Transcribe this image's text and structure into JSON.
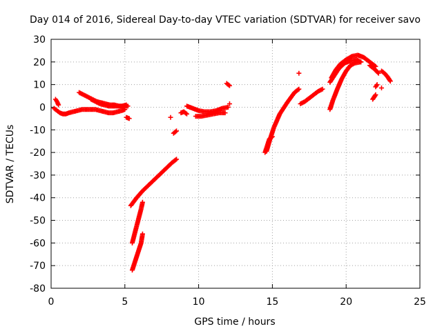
{
  "chart_data": {
    "type": "scatter",
    "title": "Day 014 of 2016, Sidereal Day-to-day VTEC variation (SDTVAR) for receiver savo",
    "xlabel": "GPS time / hours",
    "ylabel": "SDTVAR / TECUs",
    "xlim": [
      0,
      25
    ],
    "ylim": [
      -80,
      30
    ],
    "xticks": [
      0,
      5,
      10,
      15,
      20,
      25
    ],
    "yticks": [
      30,
      20,
      10,
      0,
      -10,
      -20,
      -30,
      -40,
      -50,
      -60,
      -70,
      -80
    ],
    "grid": true,
    "marker": "plus",
    "color": "#ff0000",
    "series": [
      {
        "x": [
          0.2,
          0.4,
          0.6,
          0.8,
          1.0,
          1.2,
          1.5,
          1.8,
          2.1,
          2.4,
          2.7,
          3.0,
          3.3,
          3.6,
          3.9,
          4.2,
          4.5,
          4.8,
          5.0
        ],
        "y": [
          -0.5,
          -1.5,
          -2.5,
          -3.0,
          -3.0,
          -2.5,
          -2.0,
          -1.5,
          -1.0,
          -1.0,
          -1.0,
          -1.0,
          -1.5,
          -2.0,
          -2.5,
          -2.5,
          -2.0,
          -1.5,
          -1.0
        ]
      },
      {
        "x": [
          0.3,
          0.4,
          0.5
        ],
        "y": [
          3.5,
          2.5,
          1.0
        ]
      },
      {
        "x": [
          1.9,
          2.2,
          2.5,
          2.8,
          3.1,
          3.4,
          3.7,
          4.0,
          4.3,
          4.6,
          4.9,
          5.2
        ],
        "y": [
          6.5,
          5.5,
          4.5,
          3.5,
          2.5,
          2.0,
          1.5,
          1.0,
          1.0,
          0.5,
          0.5,
          0.5
        ]
      },
      {
        "x": [
          2.7,
          3.0,
          3.3,
          3.6,
          3.9,
          4.2,
          4.5,
          4.8,
          5.1
        ],
        "y": [
          3.5,
          2.5,
          1.5,
          1.0,
          0.5,
          0.5,
          0.5,
          0.5,
          1.0
        ]
      },
      {
        "x": [
          5.1,
          5.3
        ],
        "y": [
          -4.5,
          -5.0
        ]
      },
      {
        "x": [
          5.4,
          5.8,
          6.2,
          6.6,
          7.0,
          7.4,
          7.8,
          8.2,
          8.5
        ],
        "y": [
          -43.5,
          -40.0,
          -37.0,
          -34.5,
          -32.0,
          -29.5,
          -27.0,
          -24.5,
          -23.0
        ]
      },
      {
        "x": [
          5.5,
          5.7,
          5.9,
          6.1,
          6.2
        ],
        "y": [
          -60.0,
          -55.0,
          -50.0,
          -45.0,
          -42.0
        ]
      },
      {
        "x": [
          5.5,
          5.7,
          5.9,
          6.1,
          6.2
        ],
        "y": [
          -72.0,
          -68.0,
          -64.0,
          -60.0,
          -56.0
        ]
      },
      {
        "x": [
          8.1
        ],
        "y": [
          -4.5
        ]
      },
      {
        "x": [
          8.3,
          8.5
        ],
        "y": [
          -11.5,
          -10.5
        ]
      },
      {
        "x": [
          8.8,
          9.0,
          9.2
        ],
        "y": [
          -2.5,
          -2.0,
          -3.0
        ]
      },
      {
        "x": [
          9.2,
          9.6,
          10.0,
          10.4,
          10.8,
          11.2,
          11.6,
          12.0
        ],
        "y": [
          0.5,
          -0.5,
          -1.5,
          -2.0,
          -2.0,
          -1.5,
          -0.5,
          0.0
        ]
      },
      {
        "x": [
          9.8,
          10.2,
          10.6,
          11.0,
          11.4,
          11.8
        ],
        "y": [
          -4.0,
          -4.0,
          -3.5,
          -3.0,
          -2.5,
          -2.5
        ]
      },
      {
        "x": [
          11.9,
          12.1
        ],
        "y": [
          10.5,
          9.5
        ]
      },
      {
        "x": [
          12.1
        ],
        "y": [
          1.5
        ]
      },
      {
        "x": [
          14.5,
          14.6,
          14.7,
          14.8,
          14.9,
          15.0
        ],
        "y": [
          -20.0,
          -18.0,
          -16.0,
          -14.0,
          -13.5,
          -13.0
        ]
      },
      {
        "x": [
          14.6,
          14.8,
          15.1,
          15.5,
          16.0,
          16.5,
          16.8
        ],
        "y": [
          -19.5,
          -15.0,
          -9.0,
          -3.0,
          2.0,
          6.5,
          8.0
        ]
      },
      {
        "x": [
          16.8
        ],
        "y": [
          15.0
        ]
      },
      {
        "x": [
          16.9,
          17.2,
          17.5,
          17.8,
          18.1,
          18.4
        ],
        "y": [
          1.5,
          2.5,
          4.0,
          5.5,
          7.0,
          8.0
        ]
      },
      {
        "x": [
          18.9,
          19.1,
          19.4,
          19.7,
          20.0,
          20.3,
          20.6,
          21.0
        ],
        "y": [
          -1.0,
          3.0,
          8.0,
          12.5,
          16.0,
          18.5,
          19.5,
          20.0
        ]
      },
      {
        "x": [
          18.9,
          19.2,
          19.5,
          19.9,
          20.3,
          20.7,
          21.0
        ],
        "y": [
          11.0,
          14.0,
          17.0,
          19.5,
          20.5,
          21.0,
          20.0
        ]
      },
      {
        "x": [
          19.0,
          19.3,
          19.6,
          20.0,
          20.4,
          20.8,
          21.2,
          21.6,
          22.0
        ],
        "y": [
          13.0,
          16.5,
          19.0,
          21.0,
          22.5,
          23.0,
          22.0,
          20.0,
          18.0
        ]
      },
      {
        "x": [
          21.6,
          21.9,
          22.2
        ],
        "y": [
          18.5,
          17.0,
          15.0
        ]
      },
      {
        "x": [
          21.8,
          22.0
        ],
        "y": [
          3.5,
          5.5
        ]
      },
      {
        "x": [
          22.0,
          22.1
        ],
        "y": [
          9.0,
          10.0
        ]
      },
      {
        "x": [
          22.4,
          22.6,
          22.8,
          23.0
        ],
        "y": [
          16.0,
          15.0,
          13.5,
          11.5
        ]
      },
      {
        "x": [
          22.4
        ],
        "y": [
          8.5
        ]
      }
    ]
  }
}
